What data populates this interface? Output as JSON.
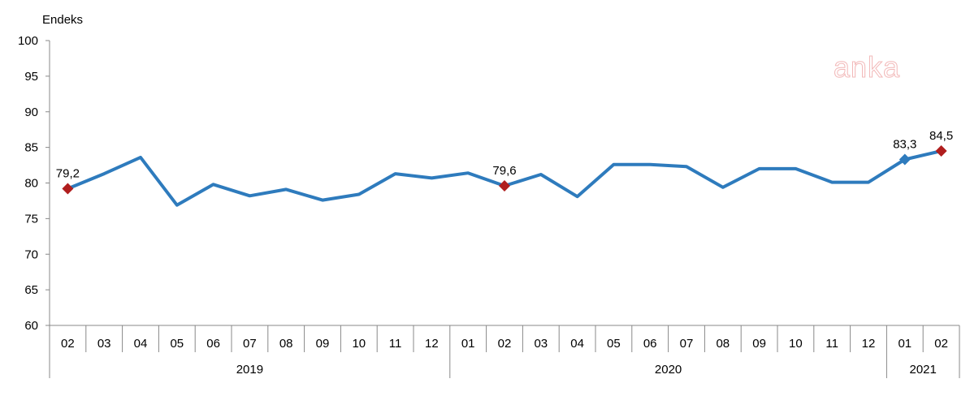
{
  "chart_data": {
    "type": "line",
    "ylabel": "Endeks",
    "ylim": [
      60,
      100
    ],
    "yticks": [
      60,
      65,
      70,
      75,
      80,
      85,
      90,
      95,
      100
    ],
    "categories": [
      "02",
      "03",
      "04",
      "05",
      "06",
      "07",
      "08",
      "09",
      "10",
      "11",
      "12",
      "01",
      "02",
      "03",
      "04",
      "05",
      "06",
      "07",
      "08",
      "09",
      "10",
      "11",
      "12",
      "01",
      "02"
    ],
    "groups": [
      {
        "label": "2019",
        "start": 0,
        "end": 10
      },
      {
        "label": "2020",
        "start": 11,
        "end": 22
      },
      {
        "label": "2021",
        "start": 23,
        "end": 24
      }
    ],
    "series": [
      {
        "values": [
          79.2,
          81.3,
          83.6,
          76.9,
          79.8,
          78.2,
          79.1,
          77.6,
          78.4,
          81.3,
          80.7,
          81.4,
          79.6,
          81.2,
          78.1,
          82.6,
          82.6,
          82.3,
          79.4,
          82.0,
          82.0,
          80.1,
          80.1,
          83.3,
          84.5
        ],
        "color": "#2e7bbd"
      }
    ],
    "markers": [
      {
        "index": 0,
        "label": "79,2",
        "color": "#b01e1e"
      },
      {
        "index": 12,
        "label": "79,6",
        "color": "#b01e1e"
      },
      {
        "index": 23,
        "label": "83,3",
        "color": "#2e7bbd"
      },
      {
        "index": 24,
        "label": "84,5",
        "color": "#b01e1e"
      }
    ],
    "grid": false
  },
  "watermark": "anka"
}
